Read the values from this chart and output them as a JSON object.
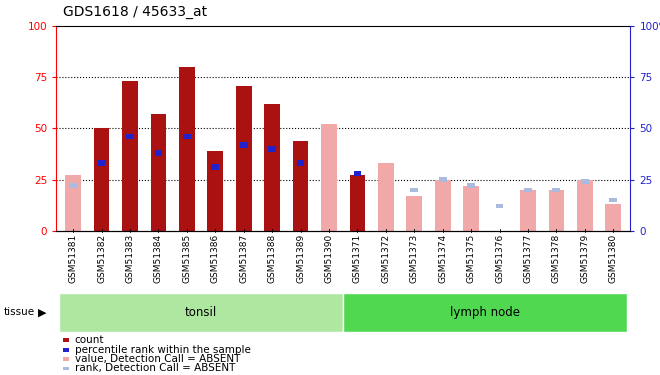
{
  "title": "GDS1618 / 45633_at",
  "samples": [
    "GSM51381",
    "GSM51382",
    "GSM51383",
    "GSM51384",
    "GSM51385",
    "GSM51386",
    "GSM51387",
    "GSM51388",
    "GSM51389",
    "GSM51390",
    "GSM51371",
    "GSM51372",
    "GSM51373",
    "GSM51374",
    "GSM51375",
    "GSM51376",
    "GSM51377",
    "GSM51378",
    "GSM51379",
    "GSM51380"
  ],
  "count_values": [
    0,
    50,
    73,
    57,
    80,
    39,
    71,
    62,
    44,
    0,
    27,
    0,
    0,
    0,
    0,
    0,
    0,
    0,
    0,
    0
  ],
  "rank_values": [
    0,
    33,
    46,
    38,
    46,
    31,
    42,
    40,
    33,
    0,
    28,
    0,
    0,
    0,
    0,
    0,
    0,
    0,
    0,
    0
  ],
  "absent_value": [
    27,
    0,
    0,
    0,
    0,
    0,
    0,
    0,
    0,
    52,
    0,
    33,
    17,
    25,
    22,
    0,
    20,
    20,
    25,
    13
  ],
  "absent_rank": [
    22,
    0,
    0,
    0,
    0,
    0,
    0,
    0,
    0,
    0,
    0,
    0,
    20,
    25,
    22,
    12,
    20,
    20,
    24,
    15
  ],
  "groups": [
    {
      "label": "tonsil",
      "start": 0,
      "end": 9,
      "color": "#aee8a0"
    },
    {
      "label": "lymph node",
      "start": 10,
      "end": 19,
      "color": "#50d850"
    }
  ],
  "ylim": [
    0,
    100
  ],
  "yticks": [
    0,
    25,
    50,
    75,
    100
  ],
  "bar_color_count": "#aa1111",
  "bar_color_rank": "#2222cc",
  "bar_color_absent_value": "#f0a8a8",
  "bar_color_absent_rank": "#aabbdd",
  "right_axis_color": "#2222cc",
  "title_fontsize": 10,
  "tick_fontsize": 6.5,
  "legend_fontsize": 7.5
}
